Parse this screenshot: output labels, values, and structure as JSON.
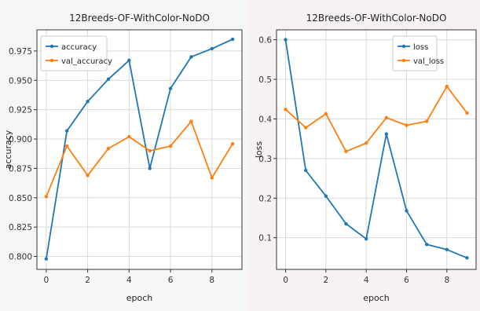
{
  "chart_data": [
    {
      "type": "line",
      "title": "12Breeds-OF-WithColor-NoDO",
      "xlabel": "epoch",
      "ylabel": "accuracy",
      "xlim": [
        -0.45,
        9.45
      ],
      "ylim": [
        0.789,
        0.993
      ],
      "xticks": [
        0,
        2,
        4,
        6,
        8
      ],
      "yticks": [
        0.8,
        0.825,
        0.85,
        0.875,
        0.9,
        0.925,
        0.95,
        0.975
      ],
      "ytick_labels": [
        "0.800",
        "0.825",
        "0.850",
        "0.875",
        "0.900",
        "0.925",
        "0.950",
        "0.975"
      ],
      "grid": true,
      "legend_position": "upper left",
      "x": [
        0,
        1,
        2,
        3,
        4,
        5,
        6,
        7,
        8,
        9
      ],
      "series": [
        {
          "name": "accuracy",
          "color": "#1f77b4",
          "values": [
            0.798,
            0.907,
            0.932,
            0.951,
            0.967,
            0.875,
            0.943,
            0.97,
            0.977,
            0.985
          ]
        },
        {
          "name": "val_accuracy",
          "color": "#ff7f0e",
          "values": [
            0.851,
            0.894,
            0.869,
            0.892,
            0.902,
            0.89,
            0.894,
            0.915,
            0.867,
            0.896
          ]
        }
      ]
    },
    {
      "type": "line",
      "title": "12Breeds-OF-WithColor-NoDO",
      "xlabel": "epoch",
      "ylabel": "loss",
      "xlim": [
        -0.45,
        9.45
      ],
      "ylim": [
        0.02,
        0.625
      ],
      "xticks": [
        0,
        2,
        4,
        6,
        8
      ],
      "yticks": [
        0.1,
        0.2,
        0.3,
        0.4,
        0.5,
        0.6
      ],
      "ytick_labels": [
        "0.1",
        "0.2",
        "0.3",
        "0.4",
        "0.5",
        "0.6"
      ],
      "grid": true,
      "legend_position": "upper right",
      "x": [
        0,
        1,
        2,
        3,
        4,
        5,
        6,
        7,
        8,
        9
      ],
      "series": [
        {
          "name": "loss",
          "color": "#1f77b4",
          "values": [
            0.6,
            0.27,
            0.205,
            0.135,
            0.097,
            0.362,
            0.168,
            0.083,
            0.07,
            0.049
          ]
        },
        {
          "name": "val_loss",
          "color": "#ff7f0e",
          "values": [
            0.424,
            0.378,
            0.413,
            0.318,
            0.339,
            0.403,
            0.384,
            0.394,
            0.482,
            0.415
          ]
        }
      ]
    }
  ]
}
